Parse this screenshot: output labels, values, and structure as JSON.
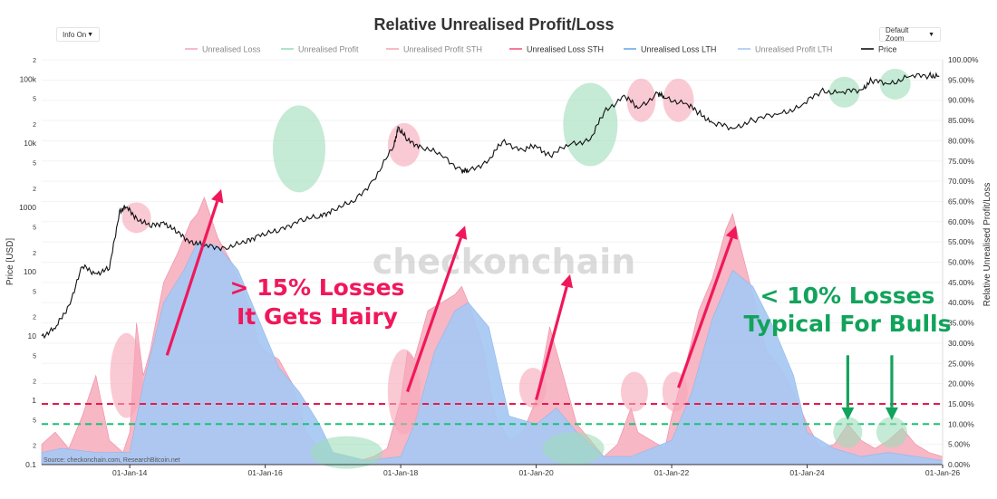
{
  "title": "Relative Unrealised Profit/Loss",
  "controls": {
    "left_select": "Info On",
    "right_select": "Default Zoom",
    "arrow": "▼"
  },
  "watermark": "checkonchain",
  "source": "Source: checkonchain.com, ResearchBitcoin.net",
  "colors": {
    "loss_pink": "#f6aabb",
    "lth_blue": "#a6c8f3",
    "price": "#111111",
    "red_line": "#e8194f",
    "green_line": "#16c27a",
    "annot_red": "#f0185a",
    "annot_green": "#12a35b",
    "circle_red": "#f7a6b8",
    "circle_green": "#9fdcb9"
  },
  "annotations": {
    "red_line1": "> 15% Losses",
    "red_line2": "It Gets Hairy",
    "green_line1": "< 10% Losses",
    "green_line2": "Typical For Bulls"
  },
  "chart_data": {
    "type": "area",
    "title": "Relative Unrealised Profit/Loss",
    "legend": [
      {
        "name": "Unrealised Loss",
        "color": "#f6aabb"
      },
      {
        "name": "Unrealised Profit",
        "color": "#9fdcb9"
      },
      {
        "name": "Unrealised Profit STH",
        "color": "#f6aabb"
      },
      {
        "name": "Unrealised Loss STH",
        "color": "#f05a80"
      },
      {
        "name": "Unrealised Loss LTH",
        "color": "#6fa8e8"
      },
      {
        "name": "Unrealised Profit LTH",
        "color": "#a6c8f3"
      },
      {
        "name": "Price",
        "color": "#111111"
      }
    ],
    "legend_placement": "top-center",
    "y_left_label": "Price [USD]",
    "y_left_ticks": [
      "0.1",
      "2",
      "5",
      "1",
      "2",
      "5",
      "10",
      "2",
      "5",
      "100",
      "2",
      "5",
      "1000",
      "2",
      "5",
      "10k",
      "2",
      "5",
      "100k",
      "2"
    ],
    "y_left_range_log10": [
      -1,
      5.3
    ],
    "y_right_label": "Relative Unrealised Profit/Loss",
    "y_right_ticks": [
      "0.00%",
      "5.00%",
      "10.00%",
      "15.00%",
      "20.00%",
      "25.00%",
      "30.00%",
      "35.00%",
      "40.00%",
      "45.00%",
      "50.00%",
      "55.00%",
      "60.00%",
      "65.00%",
      "70.00%",
      "75.00%",
      "80.00%",
      "85.00%",
      "90.00%",
      "95.00%",
      "100.00%"
    ],
    "y_right_range": [
      0,
      100
    ],
    "x_ticks": [
      "01-Jan-14",
      "01-Jan-16",
      "01-Jan-18",
      "01-Jan-20",
      "01-Jan-22",
      "01-Jan-24",
      "01-Jan-26"
    ],
    "x_range": [
      2012.7,
      2026.0
    ],
    "thresholds": [
      {
        "label": "15%",
        "value": 15
      },
      {
        "label": "10%",
        "value": 10
      }
    ],
    "unrealised_loss_pct": {
      "x": [
        2012.7,
        2012.9,
        2013.1,
        2013.3,
        2013.5,
        2013.7,
        2013.9,
        2014.0,
        2014.1,
        2014.2,
        2014.3,
        2014.5,
        2014.7,
        2014.9,
        2015.0,
        2015.1,
        2015.3,
        2015.5,
        2015.7,
        2015.9,
        2016.0,
        2016.2,
        2016.4,
        2016.6,
        2016.8,
        2017.0,
        2017.2,
        2017.4,
        2017.6,
        2017.8,
        2018.0,
        2018.1,
        2018.2,
        2018.4,
        2018.6,
        2018.8,
        2018.9,
        2019.0,
        2019.2,
        2019.4,
        2019.6,
        2019.8,
        2020.0,
        2020.2,
        2020.4,
        2020.6,
        2020.8,
        2021.0,
        2021.2,
        2021.4,
        2021.5,
        2021.7,
        2021.9,
        2022.0,
        2022.2,
        2022.4,
        2022.6,
        2022.8,
        2022.9,
        2023.0,
        2023.2,
        2023.4,
        2023.6,
        2023.8,
        2024.0,
        2024.2,
        2024.4,
        2024.6,
        2024.8,
        2025.0,
        2025.2,
        2025.4,
        2025.6,
        2025.8,
        2026.0
      ],
      "values": [
        5,
        8,
        4,
        12,
        22,
        6,
        3,
        8,
        35,
        22,
        28,
        45,
        52,
        60,
        62,
        66,
        56,
        50,
        42,
        30,
        28,
        26,
        20,
        8,
        4,
        3,
        2,
        1,
        2,
        4,
        16,
        28,
        26,
        38,
        40,
        42,
        44,
        40,
        30,
        12,
        6,
        8,
        16,
        34,
        22,
        10,
        6,
        2,
        5,
        14,
        8,
        6,
        4,
        12,
        24,
        38,
        46,
        58,
        62,
        55,
        42,
        28,
        24,
        18,
        10,
        4,
        5,
        10,
        6,
        4,
        6,
        9,
        5,
        3,
        2
      ]
    },
    "unrealised_loss_lth_pct": {
      "x": [
        2012.7,
        2013.0,
        2013.5,
        2014.0,
        2014.2,
        2014.5,
        2014.8,
        2015.0,
        2015.3,
        2015.6,
        2015.9,
        2016.2,
        2016.5,
        2016.8,
        2017.0,
        2017.5,
        2018.0,
        2018.2,
        2018.5,
        2018.8,
        2019.0,
        2019.3,
        2019.6,
        2020.0,
        2020.3,
        2020.6,
        2021.0,
        2021.4,
        2021.7,
        2022.0,
        2022.3,
        2022.6,
        2022.9,
        2023.2,
        2023.5,
        2023.8,
        2024.0,
        2024.4,
        2024.8,
        2025.2,
        2025.6,
        2026.0
      ],
      "values": [
        3,
        4,
        3,
        3,
        20,
        40,
        48,
        55,
        54,
        48,
        36,
        24,
        18,
        10,
        3,
        1,
        2,
        10,
        28,
        38,
        40,
        34,
        12,
        10,
        14,
        8,
        2,
        2,
        4,
        6,
        18,
        36,
        48,
        44,
        34,
        22,
        8,
        4,
        2,
        3,
        2,
        1
      ]
    },
    "price_usd": {
      "x": [
        2012.7,
        2012.9,
        2013.1,
        2013.3,
        2013.5,
        2013.7,
        2013.85,
        2013.95,
        2014.1,
        2014.3,
        2014.5,
        2014.7,
        2014.9,
        2015.1,
        2015.4,
        2015.7,
        2015.9,
        2016.2,
        2016.5,
        2016.8,
        2017.0,
        2017.3,
        2017.6,
        2017.9,
        2017.96,
        2018.1,
        2018.3,
        2018.6,
        2018.9,
        2019.0,
        2019.3,
        2019.5,
        2019.8,
        2020.0,
        2020.2,
        2020.5,
        2020.8,
        2021.0,
        2021.3,
        2021.5,
        2021.8,
        2021.9,
        2022.2,
        2022.4,
        2022.6,
        2022.9,
        2023.2,
        2023.6,
        2023.9,
        2024.2,
        2024.5,
        2024.8,
        2024.95,
        2025.2,
        2025.5,
        2025.8,
        2025.95
      ],
      "values": [
        10,
        13,
        30,
        120,
        95,
        110,
        900,
        1000,
        700,
        500,
        600,
        400,
        300,
        250,
        240,
        280,
        380,
        420,
        650,
        700,
        950,
        1200,
        2700,
        9000,
        18000,
        11000,
        9000,
        6500,
        3800,
        3600,
        5500,
        10500,
        8000,
        9000,
        6500,
        9500,
        11500,
        30000,
        56000,
        35000,
        60000,
        50000,
        42000,
        30000,
        21000,
        17000,
        23000,
        29000,
        37000,
        65000,
        62000,
        68000,
        95000,
        84000,
        108000,
        115000,
        110000
      ]
    }
  }
}
